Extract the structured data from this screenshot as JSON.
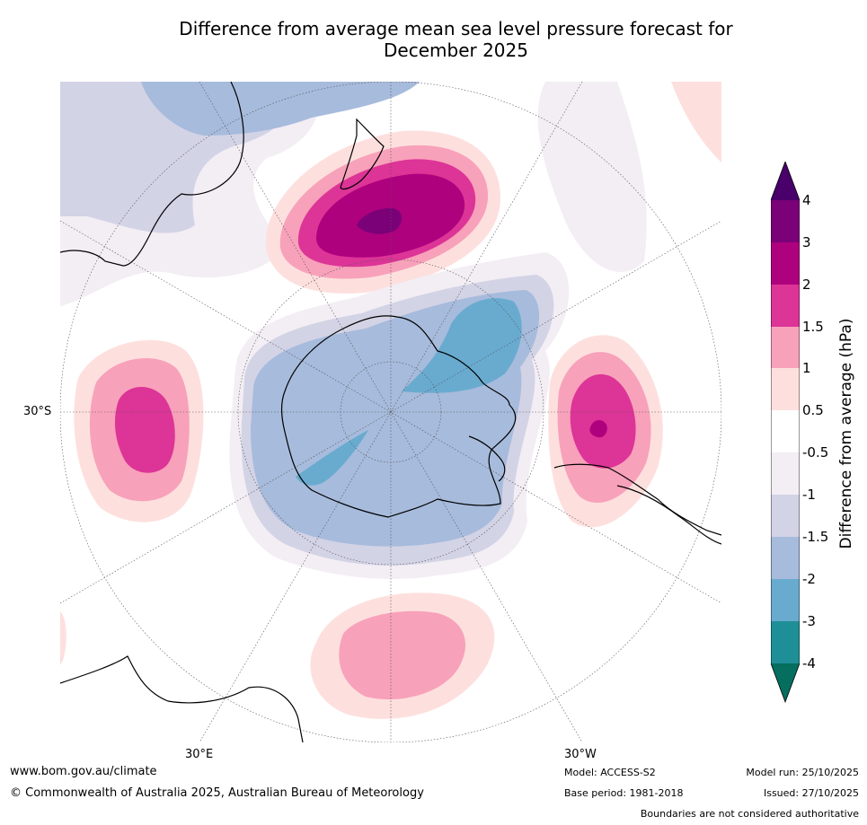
{
  "title": {
    "line1": "Difference from average mean sea level pressure forecast for",
    "line2": "December 2025"
  },
  "map": {
    "projection": "south-polar",
    "graticule_labels": {
      "lat": "30°S",
      "lon_east": "30°E",
      "lon_west": "30°W"
    },
    "anomaly_colors": {
      "lt_-4": "#056e5e",
      "-4_-3": "#1e8f97",
      "-3_-2": "#69abcf",
      "-2_-1.5": "#a7bbdc",
      "-1.5_-1": "#d3d3e6",
      "-1_-0.5": "#f3edf4",
      "-0.5_0.5": "#ffffff",
      "0.5_1": "#fde0de",
      "1_1.5": "#f8a1ba",
      "1.5_2": "#dd3497",
      "2_3": "#ae017e",
      "3_4": "#7a0177",
      "gt_4": "#49006a"
    }
  },
  "colorbar": {
    "label": "Difference from average (hPa)",
    "ticks": [
      "4",
      "3",
      "2",
      "1.5",
      "1",
      "0.5",
      "-0.5",
      "-1",
      "-1.5",
      "-2",
      "-3",
      "-4"
    ]
  },
  "footer": {
    "url": "www.bom.gov.au/climate",
    "copyright": "© Commonwealth of Australia 2025, Australian Bureau of Meteorology",
    "model": "Model: ACCESS-S2",
    "base_period": "Base period: 1981-2018",
    "model_run": "Model run: 25/10/2025",
    "issued": "Issued: 27/10/2025",
    "disclaimer": "Boundaries are not considered authoritative"
  }
}
